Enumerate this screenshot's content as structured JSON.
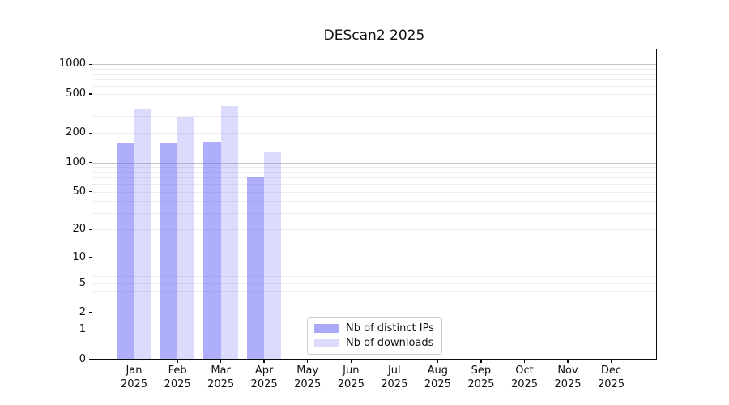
{
  "title": "DEScan2 2025",
  "legend": {
    "items": [
      {
        "label": "Nb of distinct IPs",
        "color": "#a9a9f8"
      },
      {
        "label": "Nb of downloads",
        "color": "#dcdcfa"
      }
    ]
  },
  "colors": {
    "bar_distinct_ips": "rgba(100,100,250,0.52)",
    "bar_downloads": "rgba(100,100,250,0.23)",
    "grid_major": "#c6c6c6",
    "grid_minor": "#ededed",
    "spine": "#0a0a0a",
    "background": "#ffffff"
  },
  "chart_data": {
    "type": "bar",
    "title": "DEScan2 2025",
    "categories": [
      "Jan 2025",
      "Feb 2025",
      "Mar 2025",
      "Apr 2025",
      "May 2025",
      "Jun 2025",
      "Jul 2025",
      "Aug 2025",
      "Sep 2025",
      "Oct 2025",
      "Nov 2025",
      "Dec 2025"
    ],
    "series": [
      {
        "name": "Nb of distinct IPs",
        "values": [
          154,
          156,
          160,
          69,
          0,
          0,
          0,
          0,
          0,
          0,
          0,
          0
        ]
      },
      {
        "name": "Nb of downloads",
        "values": [
          342,
          282,
          370,
          125,
          0,
          0,
          0,
          0,
          0,
          0,
          0,
          0
        ]
      }
    ],
    "xlabel": "",
    "ylabel": "",
    "yscale": "log1p",
    "ylim": [
      0,
      1400
    ],
    "yticks": [
      0,
      1,
      2,
      5,
      10,
      20,
      50,
      100,
      200,
      500,
      1000
    ],
    "grid": "horizontal; major lines at powers of 10, faint minor lines at 2-9 multiples",
    "legend_position": "inside bottom, left-of-center",
    "bars_per_category": "pair: distinct IPs (dark, left) and downloads (light, right); no bars for May-Dec (zero)"
  }
}
